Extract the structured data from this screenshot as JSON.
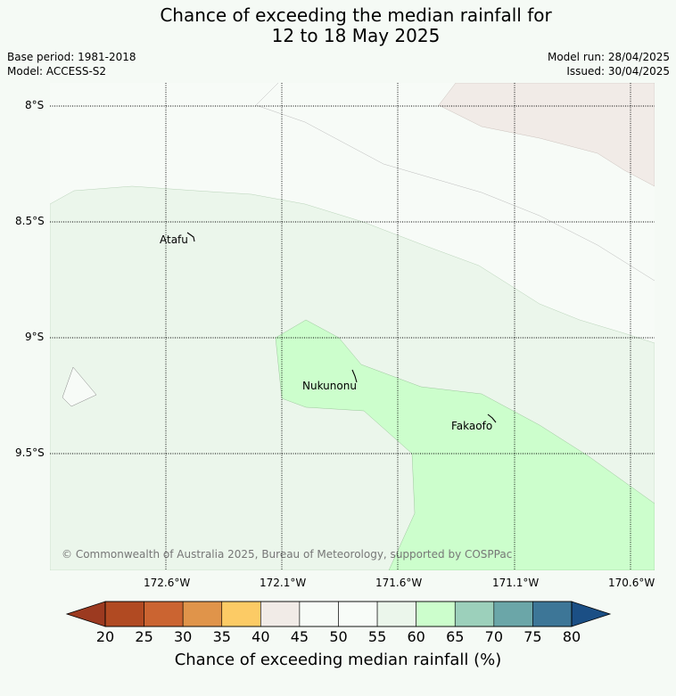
{
  "title": {
    "line1": "Chance of exceeding the median rainfall for",
    "line2": "12 to 18 May 2025"
  },
  "meta": {
    "base_period": "Base period: 1981-2018",
    "model": "Model: ACCESS-S2",
    "model_run": "Model run: 28/04/2025",
    "issued": "Issued: 30/04/2025"
  },
  "map": {
    "copyright": "© Commonwealth of Australia 2025, Bureau of Meteorology, supported by COSPPac",
    "lat_labels": [
      "8°S",
      "8.5°S",
      "9°S",
      "9.5°S"
    ],
    "lon_labels": [
      "172.6°W",
      "172.1°W",
      "171.6°W",
      "171.1°W",
      "170.6°W"
    ],
    "places": [
      {
        "name": "Atafu"
      },
      {
        "name": "Nukunonu"
      },
      {
        "name": "Fakaofo"
      }
    ]
  },
  "colorbar": {
    "title": "Chance of exceeding median rainfall (%)",
    "ticks": [
      "20",
      "25",
      "30",
      "35",
      "40",
      "45",
      "50",
      "55",
      "60",
      "65",
      "70",
      "75",
      "80"
    ],
    "colors": [
      "#b14a22",
      "#cb6431",
      "#e0944a",
      "#fccb65",
      "#f1ebe7",
      "#f7fbf7",
      "#f8fcf8",
      "#ebf6eb",
      "#ccfecc",
      "#9cd0bb",
      "#6ba6a8",
      "#3d7697"
    ],
    "under_color": "#9c3a20",
    "over_color": "#1b4f85"
  }
}
